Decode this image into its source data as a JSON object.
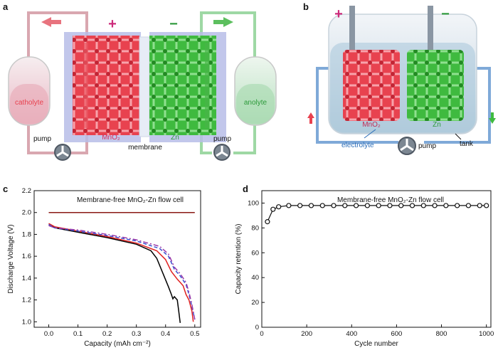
{
  "panels": {
    "a": {
      "letter": "a",
      "plus": "+",
      "minus": "−",
      "catholyte": "catholyte",
      "anolyte": "anolyte",
      "pump_left": "pump",
      "pump_right": "pump",
      "mno2": "MnO₂",
      "zn": "Zn",
      "membrane": "membrane"
    },
    "b": {
      "letter": "b",
      "plus": "+",
      "minus": "−",
      "mno2": "MnO₂",
      "zn": "Zn",
      "electrolyte": "electrolyte",
      "pump": "pump",
      "tank": "tank"
    },
    "c": {
      "letter": "c"
    },
    "d": {
      "letter": "d"
    }
  },
  "colors": {
    "mno2": "#e8424f",
    "zn": "#3fba3f",
    "catholyte_text": "#e8424f",
    "anolyte_text": "#2c9a3a",
    "electrolyte_text": "#2a6cb8",
    "plus": "#cc2a7a",
    "minus": "#2e9a3c",
    "black_curve": "#000000",
    "red_curve": "#e02020",
    "blue_curve": "#3a4fd0",
    "purple_curve": "#9a3aa8",
    "flat_line": "#8a1a14"
  },
  "chart_data": [
    {
      "type": "line",
      "panel": "c",
      "title": "Membrane-free MnO₂-Zn flow cell",
      "xlabel": "Capacity (mAh cm⁻²)",
      "ylabel": "Discharge Voltage (V)",
      "xlim": [
        -0.05,
        0.52
      ],
      "ylim": [
        0.95,
        2.2
      ],
      "xticks": [
        "0.0",
        "0.1",
        "0.2",
        "0.3",
        "0.4",
        "0.5"
      ],
      "xtick_values": [
        0.0,
        0.1,
        0.2,
        0.3,
        0.4,
        0.5
      ],
      "yticks": [
        "1.0",
        "1.2",
        "1.4",
        "1.6",
        "1.8",
        "2.0",
        "2.2"
      ],
      "ytick_values": [
        1.0,
        1.2,
        1.4,
        1.6,
        1.8,
        2.0,
        2.2
      ],
      "series": [
        {
          "color": "#8a1a14",
          "style": "solid",
          "x": [
            0.0,
            0.5
          ],
          "y": [
            2.0,
            2.0
          ]
        },
        {
          "color": "#000000",
          "style": "solid",
          "x": [
            0.0,
            0.02,
            0.1,
            0.2,
            0.3,
            0.35,
            0.37,
            0.39,
            0.41,
            0.42,
            0.425,
            0.43,
            0.44,
            0.445,
            0.45
          ],
          "y": [
            1.89,
            1.86,
            1.82,
            1.77,
            1.71,
            1.65,
            1.58,
            1.45,
            1.32,
            1.25,
            1.21,
            1.23,
            1.2,
            1.1,
            0.99
          ]
        },
        {
          "color": "#e02020",
          "style": "solid",
          "x": [
            0.0,
            0.02,
            0.1,
            0.2,
            0.3,
            0.37,
            0.4,
            0.42,
            0.44,
            0.46,
            0.47,
            0.48,
            0.49,
            0.495
          ],
          "y": [
            1.9,
            1.87,
            1.83,
            1.78,
            1.72,
            1.65,
            1.57,
            1.46,
            1.39,
            1.33,
            1.25,
            1.2,
            1.1,
            1.0
          ]
        },
        {
          "color": "#3a4fd0",
          "style": "dashed",
          "x": [
            0.0,
            0.02,
            0.1,
            0.2,
            0.3,
            0.38,
            0.41,
            0.43,
            0.45,
            0.47,
            0.48,
            0.49,
            0.5
          ],
          "y": [
            1.89,
            1.86,
            1.83,
            1.79,
            1.74,
            1.67,
            1.6,
            1.48,
            1.42,
            1.34,
            1.25,
            1.14,
            1.02
          ]
        },
        {
          "color": "#9a3aa8",
          "style": "dashdot",
          "x": [
            0.0,
            0.02,
            0.1,
            0.2,
            0.3,
            0.38,
            0.41,
            0.43,
            0.45,
            0.47,
            0.48,
            0.49,
            0.5
          ],
          "y": [
            1.88,
            1.86,
            1.84,
            1.8,
            1.75,
            1.69,
            1.62,
            1.5,
            1.44,
            1.36,
            1.27,
            1.16,
            1.02
          ]
        }
      ]
    },
    {
      "type": "scatter",
      "panel": "d",
      "title": "Membrane-free MnO₂-Zn flow cell",
      "xlabel": "Cycle number",
      "ylabel": "Capacity retention (%)",
      "xlim": [
        0,
        1020
      ],
      "ylim": [
        0,
        110
      ],
      "xticks": [
        "0",
        "200",
        "400",
        "600",
        "800",
        "1000"
      ],
      "xtick_values": [
        0,
        200,
        400,
        600,
        800,
        1000
      ],
      "yticks": [
        "0",
        "20",
        "40",
        "60",
        "80",
        "100"
      ],
      "ytick_values": [
        0,
        20,
        40,
        60,
        80,
        100
      ],
      "x": [
        25,
        50,
        75,
        120,
        170,
        220,
        270,
        320,
        370,
        420,
        470,
        520,
        570,
        620,
        670,
        720,
        770,
        820,
        870,
        920,
        970,
        1000
      ],
      "y": [
        85,
        95,
        97,
        98,
        98,
        98,
        98,
        98,
        98,
        98,
        98,
        98,
        98,
        98,
        98,
        98,
        98,
        98,
        98,
        98,
        98,
        98
      ]
    }
  ]
}
